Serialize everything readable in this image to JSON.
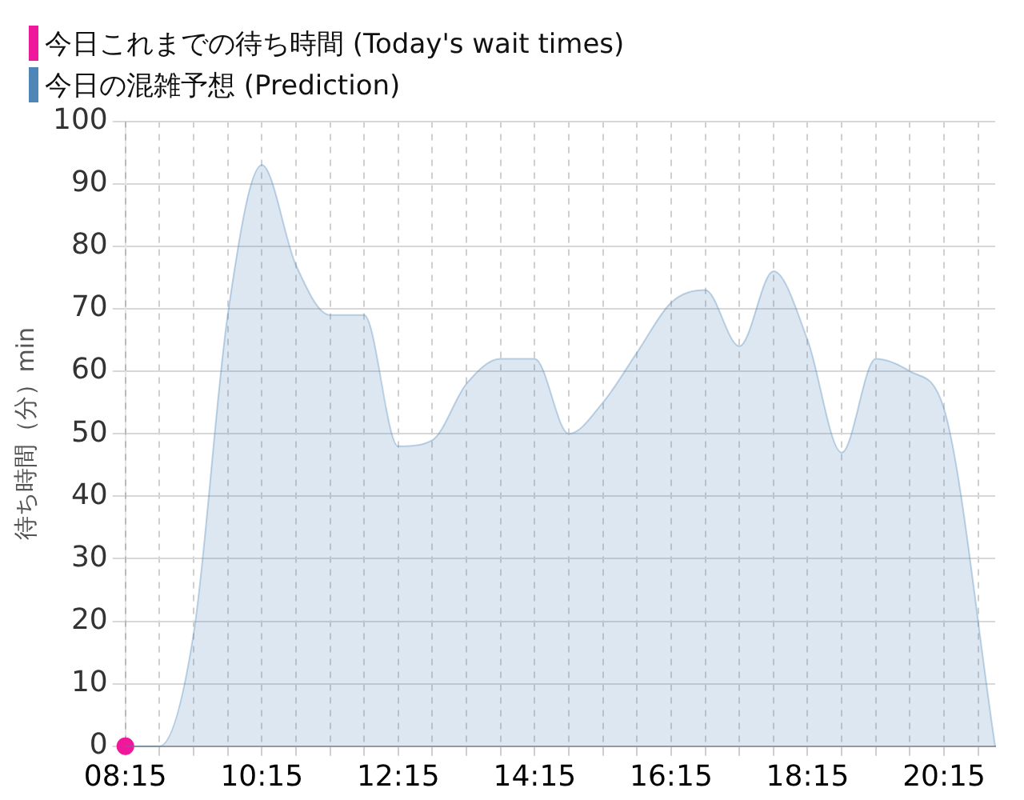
{
  "chart_data": {
    "type": "area",
    "ylabel": "待ち時間（分）min",
    "legend": "top left",
    "grid": true,
    "xlim": [
      8.25,
      21
    ],
    "ylim": [
      0,
      100
    ],
    "yticks": [
      0,
      10,
      20,
      30,
      40,
      50,
      60,
      70,
      80,
      90,
      100
    ],
    "xticks": [
      {
        "value": 8.25,
        "label": "08:15"
      },
      {
        "value": 8.75,
        "label": null
      },
      {
        "value": 9.25,
        "label": null
      },
      {
        "value": 9.75,
        "label": null
      },
      {
        "value": 10.25,
        "label": "10:15"
      },
      {
        "value": 10.75,
        "label": null
      },
      {
        "value": 11.25,
        "label": null
      },
      {
        "value": 11.75,
        "label": null
      },
      {
        "value": 12.25,
        "label": "12:15"
      },
      {
        "value": 12.75,
        "label": null
      },
      {
        "value": 13.25,
        "label": null
      },
      {
        "value": 13.75,
        "label": null
      },
      {
        "value": 14.25,
        "label": "14:15"
      },
      {
        "value": 14.75,
        "label": null
      },
      {
        "value": 15.25,
        "label": null
      },
      {
        "value": 15.75,
        "label": null
      },
      {
        "value": 16.25,
        "label": "16:15"
      },
      {
        "value": 16.75,
        "label": null
      },
      {
        "value": 17.25,
        "label": null
      },
      {
        "value": 17.75,
        "label": null
      },
      {
        "value": 18.25,
        "label": "18:15"
      },
      {
        "value": 18.75,
        "label": null
      },
      {
        "value": 19.25,
        "label": null
      },
      {
        "value": 19.75,
        "label": null
      },
      {
        "value": 20.25,
        "label": "20:15"
      },
      {
        "value": 20.75,
        "label": null
      }
    ],
    "series": [
      {
        "name": "今日これまでの待ち時間 (Today's wait times)",
        "type": "scatter",
        "marker": "circle",
        "color": "#f0189a",
        "x": [
          8.25
        ],
        "values": [
          0
        ]
      },
      {
        "name": "今日の混雑予想 (Prediction)",
        "color": "#4f86b8",
        "x": [
          8.25,
          8.75,
          9.25,
          9.75,
          10.25,
          10.75,
          11.25,
          11.75,
          12.25,
          12.75,
          13.25,
          13.75,
          14.25,
          14.75,
          15.25,
          15.75,
          16.25,
          16.75,
          17.25,
          17.75,
          18.25,
          18.75,
          19.25,
          19.75,
          20.25,
          21
        ],
        "values": [
          0,
          0,
          18,
          69,
          93,
          77,
          69,
          69,
          48,
          49,
          58,
          62,
          62,
          50,
          55,
          63,
          71,
          73,
          64,
          76,
          65,
          47,
          62,
          60,
          54,
          0
        ]
      }
    ]
  }
}
